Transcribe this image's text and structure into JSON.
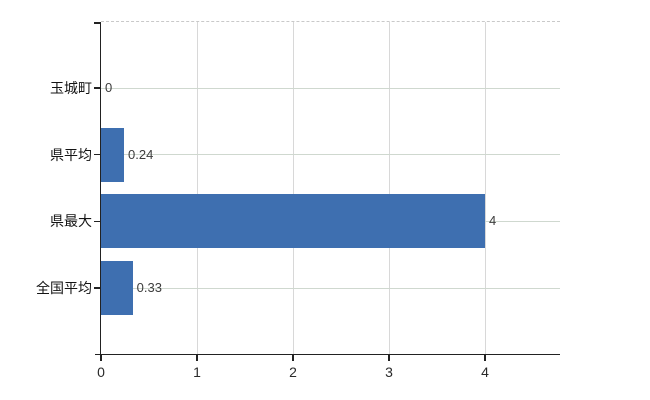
{
  "chart_data": {
    "type": "bar",
    "orientation": "horizontal",
    "title": "",
    "xlabel": "",
    "ylabel": "",
    "categories": [
      "玉城町",
      "県平均",
      "県最大",
      "全国平均"
    ],
    "values": [
      0,
      0.24,
      4,
      0.33
    ],
    "value_labels": [
      "0",
      "0.24",
      "4",
      "0.33"
    ],
    "x_ticks": [
      "0",
      "1",
      "2",
      "3",
      "4"
    ],
    "x_tick_values": [
      0,
      1,
      2,
      3,
      4
    ],
    "xlim": [
      0,
      4.8
    ],
    "grid": true,
    "legend": false,
    "colors": {
      "bar": "#3e6fb0",
      "axis": "#222222",
      "h_gridline": "#cfd8cf",
      "v_gridline": "#d8d8d8",
      "top_border": "#c9c9c9",
      "category_label": "#141414",
      "tick_label": "#2a2a2a",
      "data_label": "#3d3d3d",
      "background": "#ffffff"
    }
  }
}
